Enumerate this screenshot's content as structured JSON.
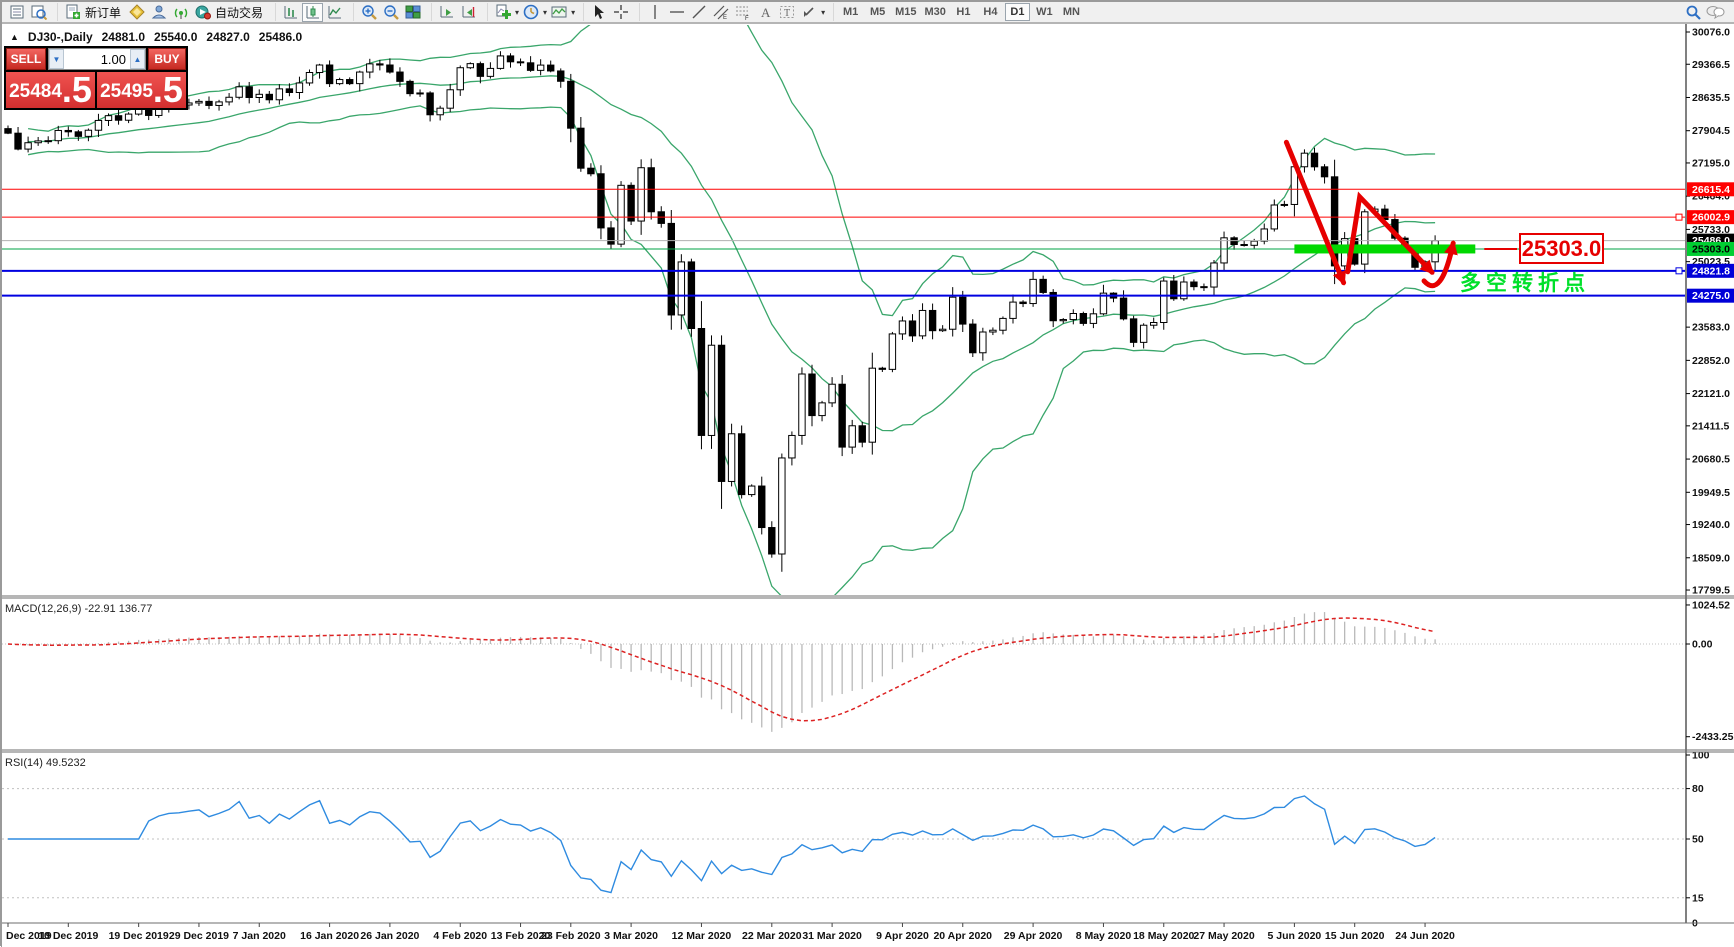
{
  "toolbar": {
    "new_order_label": "新订单",
    "autotrading_label": "自动交易",
    "timeframes": [
      "M1",
      "M5",
      "M15",
      "M30",
      "H1",
      "H4",
      "D1",
      "W1",
      "MN"
    ],
    "active_timeframe": "D1"
  },
  "chart_header": {
    "marker": "▲",
    "symbol": "DJ30-,Daily",
    "open": "24881.0",
    "high": "25540.0",
    "low": "24827.0",
    "close": "25486.0"
  },
  "trade_panel": {
    "sell_label": "SELL",
    "buy_label": "BUY",
    "volume": "1.00",
    "spin_down": "▼",
    "spin_up": "▲",
    "sell_price": "25484",
    "sell_price_frac": ".5",
    "buy_price": "25495",
    "buy_price_frac": ".5"
  },
  "indicator_labels": {
    "macd": "MACD(12,26,9) -22.91 136.77",
    "rsi": "RSI(14) 49.5232"
  },
  "annotations": {
    "level_label": "25303.0",
    "turning_point": "多空转折点"
  },
  "chart_data": {
    "type": "candlestick",
    "symbol": "DJ30-,Daily",
    "visible_ohlc": {
      "open": 24881.0,
      "high": 25540.0,
      "low": 24827.0,
      "close": 25486.0
    },
    "closes": [
      27850,
      27500,
      27640,
      27680,
      27685,
      27910,
      27880,
      27780,
      27915,
      28130,
      28235,
      28135,
      28270,
      28375,
      28240,
      28380,
      28455,
      28470,
      28515,
      28550,
      28460,
      28538,
      28640,
      28870,
      28635,
      28705,
      28585,
      28825,
      28745,
      28955,
      29185,
      29350,
      28940,
      29030,
      28940,
      29195,
      29375,
      29350,
      29195,
      28990,
      28720,
      28735,
      28255,
      28400,
      28805,
      29290,
      29380,
      29100,
      29275,
      29550,
      29420,
      29398,
      29232,
      29348,
      29219,
      28992,
      27960,
      27080,
      26957,
      25766,
      25409,
      26703,
      25917,
      27090,
      26121,
      25865,
      23851,
      25018,
      23553,
      21200,
      23185,
      20188,
      21237,
      19899,
      20087,
      19174,
      18592,
      20705,
      21200,
      22552,
      21637,
      21917,
      22327,
      20944,
      21413,
      21052,
      22680,
      22654,
      23434,
      23719,
      23391,
      23950,
      23505,
      23537,
      24242,
      23650,
      23019,
      23476,
      23515,
      23775,
      24134,
      24102,
      24634,
      24346,
      23724,
      23750,
      23883,
      23665,
      23876,
      24331,
      24222,
      23765,
      23248,
      23625,
      23685,
      24597,
      24207,
      24576,
      24474,
      24465,
      24995,
      25548,
      25401,
      25383,
      25475,
      25743,
      26270,
      26282,
      27111,
      27410,
      27110,
      26890,
      24930,
      25530,
      24970,
      26120,
      26180,
      25950,
      25540,
      25310,
      24900,
      25020,
      25486
    ],
    "bollinger": {
      "period": 20,
      "deviation": 2,
      "color": "#3aa66b"
    },
    "price_axis_ticks": [
      {
        "label": "30076.0",
        "value": 30076.0
      },
      {
        "label": "29366.5",
        "value": 29366.5
      },
      {
        "label": "28635.5",
        "value": 28635.5
      },
      {
        "label": "27904.5",
        "value": 27904.5
      },
      {
        "label": "27195.0",
        "value": 27195.0
      },
      {
        "label": "26464.0",
        "value": 26464.0
      },
      {
        "label": "25733.0",
        "value": 25733.0
      },
      {
        "label": "25023.5",
        "value": 25023.5
      },
      {
        "label": "23583.0",
        "value": 23583.0
      },
      {
        "label": "22852.0",
        "value": 22852.0
      },
      {
        "label": "22121.0",
        "value": 22121.0
      },
      {
        "label": "21411.5",
        "value": 21411.5
      },
      {
        "label": "20680.5",
        "value": 20680.5
      },
      {
        "label": "19949.5",
        "value": 19949.5
      },
      {
        "label": "19240.0",
        "value": 19240.0
      },
      {
        "label": "18509.0",
        "value": 18509.0
      },
      {
        "label": "17799.5",
        "value": 17799.5
      }
    ],
    "levels": [
      {
        "price": 26615.4,
        "line_color": "#ff0000",
        "badge_bg": "#ff0000",
        "badge_fg": "#ffffff",
        "width": 1
      },
      {
        "price": 26002.9,
        "line_color": "#ff0000",
        "badge_bg": "#ff0000",
        "badge_fg": "#ffffff",
        "width": 1,
        "handle": true
      },
      {
        "price": 25486.0,
        "line_color": "#b0b0b0",
        "badge_bg": "#000000",
        "badge_fg": "#ffffff",
        "width": 1,
        "role": "current-price"
      },
      {
        "price": 25303.0,
        "line_color": "#00a344",
        "badge_bg": "#00ce32",
        "badge_fg": "#000000",
        "width": 1
      },
      {
        "price": 24821.8,
        "line_color": "#0000e0",
        "badge_bg": "#0000d8",
        "badge_fg": "#ffffff",
        "width": 2,
        "handle": true
      },
      {
        "price": 24275.0,
        "line_color": "#0000e0",
        "badge_bg": "#0000d8",
        "badge_fg": "#ffffff",
        "width": 2
      }
    ],
    "highlight_bar": {
      "price": 25303.0,
      "from_index": 128,
      "to_index": 146,
      "color": "#00d800",
      "thickness": 9
    },
    "zigzag_arrows": {
      "color": "#e60000",
      "segments": [
        {
          "points": [
            [
              127.2,
              27650
            ],
            [
              132.9,
              24560
            ]
          ],
          "arrow": true
        },
        {
          "points": [
            [
              133.3,
              24800
            ],
            [
              134.5,
              26450
            ],
            [
              141.7,
              24790
            ]
          ],
          "arrow": true
        },
        {
          "type": "curve",
          "points": [
            [
              140.9,
              24600
            ],
            [
              142.6,
              24180
            ],
            [
              143.8,
              25430
            ]
          ],
          "arrow": true
        }
      ]
    },
    "macd": {
      "label": "MACD(12,26,9) -22.91 136.77",
      "params": [
        12,
        26,
        9
      ],
      "last_main": -22.91,
      "last_signal": 136.77,
      "axis": [
        {
          "label": "1024.52",
          "value": 1024.52
        },
        {
          "label": "0.00",
          "value": 0
        },
        {
          "label": "-2433.25",
          "value": -2433.25
        }
      ]
    },
    "rsi": {
      "label": "RSI(14) 49.5232",
      "period": 14,
      "last": 49.5232,
      "axis": [
        {
          "label": "100",
          "value": 100
        },
        {
          "label": "80",
          "value": 80
        },
        {
          "label": "50",
          "value": 50
        },
        {
          "label": "15",
          "value": 15
        },
        {
          "label": "0",
          "value": 0
        }
      ],
      "dotted_levels": [
        80,
        50,
        15
      ]
    },
    "date_ticks": [
      {
        "label": "Dec 2019",
        "index": 0
      },
      {
        "label": "10 Dec 2019",
        "index": 6
      },
      {
        "label": "19 Dec 2019",
        "index": 13
      },
      {
        "label": "29 Dec 2019",
        "index": 19
      },
      {
        "label": "7 Jan 2020",
        "index": 25
      },
      {
        "label": "16 Jan 2020",
        "index": 32
      },
      {
        "label": "26 Jan 2020",
        "index": 38
      },
      {
        "label": "4 Feb 2020",
        "index": 45
      },
      {
        "label": "13 Feb 2020",
        "index": 51
      },
      {
        "label": "23 Feb 2020",
        "index": 56
      },
      {
        "label": "3 Mar 2020",
        "index": 62
      },
      {
        "label": "12 Mar 2020",
        "index": 69
      },
      {
        "label": "22 Mar 2020",
        "index": 76
      },
      {
        "label": "31 Mar 2020",
        "index": 82
      },
      {
        "label": "9 Apr 2020",
        "index": 89
      },
      {
        "label": "20 Apr 2020",
        "index": 95
      },
      {
        "label": "29 Apr 2020",
        "index": 102
      },
      {
        "label": "8 May 2020",
        "index": 109
      },
      {
        "label": "18 May 2020",
        "index": 115
      },
      {
        "label": "27 May 2020",
        "index": 121
      },
      {
        "label": "5 Jun 2020",
        "index": 128
      },
      {
        "label": "15 Jun 2020",
        "index": 134
      },
      {
        "label": "24 Jun 2020",
        "index": 141
      }
    ],
    "colors": {
      "bull": "#ffffff",
      "bear": "#000000",
      "outline": "#000000",
      "macd_hist": "#b9b9b9",
      "macd_signal": "#dd2222",
      "rsi_line": "#2f8be0",
      "grid": "#c0c0c0"
    }
  }
}
